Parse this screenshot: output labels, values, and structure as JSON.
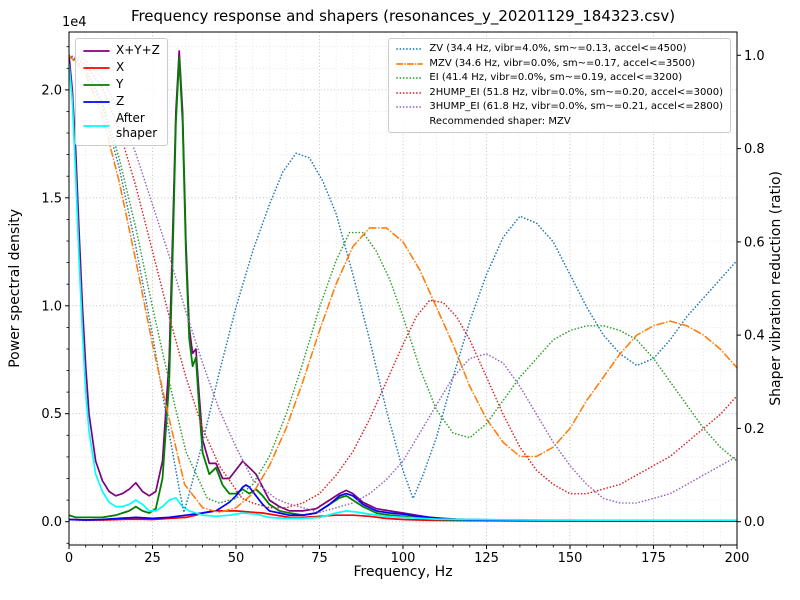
{
  "chart_data": {
    "type": "line",
    "title": "Frequency response and shapers (resonances_y_20201129_184323.csv)",
    "xlabel": "Frequency, Hz",
    "ylabel_left": "Power spectral density",
    "ylabel_right": "Shaper vibration reduction (ratio)",
    "x_axis": {
      "min": 0,
      "max": 200,
      "ticks": [
        0,
        25,
        50,
        75,
        100,
        125,
        150,
        175,
        200
      ],
      "tick_labels": [
        "0",
        "25",
        "50",
        "75",
        "100",
        "125",
        "150",
        "175",
        "200"
      ],
      "minor_step": 5
    },
    "y_left": {
      "min": -0.108,
      "max": 2.268,
      "ticks": [
        0,
        0.5,
        1,
        1.5,
        2
      ],
      "tick_labels": [
        "0.0",
        "0.5",
        "1.0",
        "1.5",
        "2.0"
      ],
      "minor_step": 0.1,
      "offset_text": "1e4",
      "units": "1e4"
    },
    "y_right": {
      "min": -0.05,
      "max": 1.05,
      "ticks": [
        0,
        0.2,
        0.4,
        0.6,
        0.8,
        1
      ],
      "tick_labels": [
        "0.0",
        "0.2",
        "0.4",
        "0.6",
        "0.8",
        "1.0"
      ]
    },
    "grid": {
      "major_color": "#b5b5b5",
      "minor_color": "#e2e2e2",
      "style": "dotted"
    },
    "legend_psd": {
      "items": [
        {
          "series": "X+Y+Z",
          "label": "X+Y+Z"
        },
        {
          "series": "X",
          "label": "X"
        },
        {
          "series": "Y",
          "label": "Y"
        },
        {
          "series": "Z",
          "label": "Z"
        },
        {
          "series": "After shaper",
          "label": "After\nshaper"
        }
      ]
    },
    "legend_shapers": {
      "items": [
        {
          "series": "ZV",
          "label": "ZV (34.4 Hz, vibr=4.0%, sm~=0.13, accel<=4500)"
        },
        {
          "series": "MZV",
          "label": "MZV (34.6 Hz, vibr=0.0%, sm~=0.17, accel<=3500)"
        },
        {
          "series": "EI",
          "label": "EI (41.4 Hz, vibr=0.0%, sm~=0.19, accel<=3200)"
        },
        {
          "series": "2HUMP_EI",
          "label": "2HUMP_EI (51.8 Hz, vibr=0.0%, sm~=0.20, accel<=3000)"
        },
        {
          "series": "3HUMP_EI",
          "label": "3HUMP_EI (61.8 Hz, vibr=0.0%, sm~=0.21, accel<=2800)"
        }
      ],
      "note": "Recommended shaper: MZV"
    },
    "series": [
      {
        "name": "X+Y+Z",
        "axis": "left",
        "color": "#800080",
        "style": "solid",
        "width": 1.7,
        "x": [
          0,
          1,
          2,
          3,
          4,
          5,
          6,
          8,
          10,
          12,
          14,
          16,
          18,
          20,
          22,
          24,
          26,
          28,
          30,
          31,
          32,
          33,
          34,
          35,
          36,
          37,
          38,
          39,
          40,
          42,
          44,
          46,
          48,
          50,
          52,
          54,
          56,
          58,
          60,
          63,
          66,
          70,
          74,
          78,
          81,
          83,
          85,
          88,
          92,
          96,
          100,
          104,
          108,
          112,
          116,
          120,
          130,
          140,
          160,
          180,
          200
        ],
        "y": [
          2.16,
          2.0,
          1.72,
          1.35,
          1.0,
          0.72,
          0.5,
          0.28,
          0.19,
          0.14,
          0.12,
          0.13,
          0.15,
          0.18,
          0.14,
          0.12,
          0.14,
          0.28,
          0.75,
          1.3,
          1.9,
          2.18,
          1.9,
          1.3,
          0.9,
          0.78,
          0.8,
          0.58,
          0.38,
          0.27,
          0.27,
          0.2,
          0.2,
          0.24,
          0.28,
          0.25,
          0.22,
          0.16,
          0.1,
          0.07,
          0.05,
          0.05,
          0.06,
          0.1,
          0.13,
          0.145,
          0.13,
          0.09,
          0.06,
          0.05,
          0.04,
          0.03,
          0.02,
          0.015,
          0.012,
          0.01,
          0.008,
          0.006,
          0.005,
          0.005,
          0.005
        ]
      },
      {
        "name": "X",
        "axis": "left",
        "color": "#ff0000",
        "style": "solid",
        "width": 1.7,
        "x": [
          0,
          5,
          10,
          15,
          20,
          25,
          30,
          35,
          38,
          40,
          43,
          46,
          50,
          54,
          58,
          62,
          66,
          70,
          75,
          80,
          85,
          90,
          95,
          100,
          105,
          110,
          120,
          140,
          160,
          180,
          200
        ],
        "y": [
          0.01,
          0.008,
          0.008,
          0.01,
          0.012,
          0.01,
          0.015,
          0.02,
          0.03,
          0.04,
          0.05,
          0.05,
          0.05,
          0.045,
          0.04,
          0.03,
          0.02,
          0.02,
          0.025,
          0.03,
          0.03,
          0.025,
          0.015,
          0.01,
          0.008,
          0.006,
          0.005,
          0.004,
          0.003,
          0.003,
          0.003
        ]
      },
      {
        "name": "Y",
        "axis": "left",
        "color": "#008000",
        "style": "solid",
        "width": 1.8,
        "x": [
          0,
          2,
          4,
          6,
          8,
          10,
          14,
          18,
          20,
          22,
          24,
          26,
          28,
          30,
          31,
          32,
          33,
          34,
          35,
          36,
          37,
          38,
          39,
          40,
          42,
          44,
          46,
          48,
          50,
          52,
          54,
          56,
          58,
          60,
          63,
          66,
          70,
          74,
          78,
          81,
          83,
          85,
          88,
          92,
          96,
          100,
          105,
          110,
          120,
          140,
          160,
          180,
          200
        ],
        "y": [
          0.03,
          0.02,
          0.02,
          0.02,
          0.02,
          0.02,
          0.03,
          0.05,
          0.07,
          0.05,
          0.04,
          0.06,
          0.2,
          0.65,
          1.2,
          1.85,
          2.15,
          1.85,
          1.25,
          0.85,
          0.72,
          0.76,
          0.52,
          0.32,
          0.22,
          0.25,
          0.17,
          0.13,
          0.13,
          0.15,
          0.13,
          0.15,
          0.12,
          0.08,
          0.05,
          0.04,
          0.03,
          0.04,
          0.08,
          0.11,
          0.12,
          0.1,
          0.07,
          0.04,
          0.03,
          0.025,
          0.015,
          0.01,
          0.006,
          0.004,
          0.003,
          0.003,
          0.003
        ]
      },
      {
        "name": "Z",
        "axis": "left",
        "color": "#0000ff",
        "style": "solid",
        "width": 1.7,
        "x": [
          0,
          5,
          10,
          15,
          20,
          25,
          30,
          35,
          40,
          44,
          48,
          50,
          52,
          53,
          54,
          56,
          58,
          60,
          63,
          66,
          70,
          74,
          78,
          81,
          83,
          85,
          88,
          92,
          96,
          100,
          104,
          108,
          112,
          116,
          120,
          140,
          160,
          180,
          200
        ],
        "y": [
          0.01,
          0.008,
          0.01,
          0.015,
          0.02,
          0.015,
          0.02,
          0.03,
          0.04,
          0.05,
          0.09,
          0.12,
          0.16,
          0.17,
          0.16,
          0.12,
          0.08,
          0.05,
          0.04,
          0.03,
          0.03,
          0.04,
          0.08,
          0.12,
          0.13,
          0.12,
          0.08,
          0.05,
          0.04,
          0.035,
          0.025,
          0.02,
          0.012,
          0.01,
          0.008,
          0.005,
          0.004,
          0.004,
          0.004
        ]
      },
      {
        "name": "After shaper",
        "axis": "left",
        "color": "#00ffff",
        "style": "solid",
        "width": 1.7,
        "x": [
          0,
          1,
          2,
          3,
          4,
          5,
          6,
          8,
          10,
          12,
          14,
          16,
          18,
          20,
          22,
          24,
          26,
          28,
          30,
          32,
          34,
          36,
          38,
          40,
          44,
          48,
          52,
          56,
          60,
          65,
          70,
          75,
          80,
          83,
          86,
          90,
          95,
          100,
          110,
          120,
          140,
          160,
          180,
          200
        ],
        "y": [
          2.12,
          1.95,
          1.6,
          1.22,
          0.88,
          0.6,
          0.42,
          0.22,
          0.14,
          0.09,
          0.07,
          0.07,
          0.08,
          0.1,
          0.08,
          0.05,
          0.05,
          0.07,
          0.1,
          0.11,
          0.07,
          0.05,
          0.04,
          0.03,
          0.025,
          0.03,
          0.04,
          0.035,
          0.02,
          0.015,
          0.015,
          0.02,
          0.04,
          0.05,
          0.045,
          0.035,
          0.025,
          0.02,
          0.012,
          0.01,
          0.008,
          0.007,
          0.007,
          0.007
        ]
      },
      {
        "name": "ZV",
        "axis": "right",
        "color": "#1f77b4",
        "style": "dotted",
        "width": 1.6,
        "x": [
          0,
          5,
          10,
          15,
          20,
          25,
          30,
          33,
          34.4,
          36,
          40,
          45,
          50,
          55,
          60,
          64,
          68,
          72,
          76,
          80,
          85,
          90,
          95,
          100,
          103,
          106,
          110,
          115,
          120,
          125,
          130,
          135,
          140,
          145,
          150,
          155,
          160,
          165,
          170,
          175,
          180,
          185,
          190,
          195,
          200
        ],
        "y": [
          1.0,
          0.97,
          0.89,
          0.76,
          0.59,
          0.4,
          0.19,
          0.07,
          0.02,
          0.06,
          0.17,
          0.32,
          0.46,
          0.58,
          0.68,
          0.75,
          0.79,
          0.78,
          0.73,
          0.66,
          0.53,
          0.39,
          0.24,
          0.11,
          0.05,
          0.1,
          0.18,
          0.31,
          0.43,
          0.53,
          0.61,
          0.655,
          0.64,
          0.6,
          0.53,
          0.46,
          0.4,
          0.36,
          0.335,
          0.35,
          0.39,
          0.44,
          0.48,
          0.52,
          0.56
        ]
      },
      {
        "name": "MZV",
        "axis": "right",
        "color": "#ff7f0e",
        "style": "dashdot",
        "width": 1.6,
        "x": [
          0,
          5,
          10,
          15,
          20,
          25,
          30,
          34.6,
          40,
          45,
          50,
          55,
          60,
          65,
          70,
          75,
          80,
          85,
          90,
          95,
          100,
          105,
          110,
          115,
          120,
          125,
          130,
          135,
          140,
          145,
          150,
          155,
          160,
          165,
          170,
          175,
          180,
          185,
          190,
          195,
          200
        ],
        "y": [
          1.0,
          0.96,
          0.87,
          0.73,
          0.56,
          0.38,
          0.22,
          0.08,
          0.03,
          0.02,
          0.03,
          0.06,
          0.12,
          0.2,
          0.3,
          0.41,
          0.51,
          0.59,
          0.63,
          0.63,
          0.6,
          0.54,
          0.46,
          0.38,
          0.29,
          0.22,
          0.17,
          0.14,
          0.14,
          0.16,
          0.2,
          0.26,
          0.31,
          0.36,
          0.4,
          0.42,
          0.43,
          0.42,
          0.4,
          0.37,
          0.33
        ]
      },
      {
        "name": "EI",
        "axis": "right",
        "color": "#2ca02c",
        "style": "dotted",
        "width": 1.6,
        "x": [
          0,
          5,
          10,
          15,
          20,
          25,
          30,
          35,
          41.4,
          45,
          50,
          55,
          60,
          65,
          70,
          75,
          80,
          84,
          88,
          92,
          96,
          100,
          105,
          110,
          115,
          120,
          125,
          130,
          135,
          140,
          145,
          150,
          155,
          160,
          165,
          170,
          175,
          180,
          185,
          190,
          195,
          200
        ],
        "y": [
          1.0,
          0.97,
          0.9,
          0.78,
          0.63,
          0.46,
          0.3,
          0.15,
          0.05,
          0.04,
          0.05,
          0.08,
          0.14,
          0.23,
          0.34,
          0.46,
          0.56,
          0.62,
          0.62,
          0.58,
          0.52,
          0.44,
          0.33,
          0.24,
          0.19,
          0.18,
          0.21,
          0.26,
          0.31,
          0.35,
          0.39,
          0.41,
          0.42,
          0.42,
          0.41,
          0.39,
          0.35,
          0.3,
          0.25,
          0.2,
          0.16,
          0.13
        ]
      },
      {
        "name": "2HUMP_EI",
        "axis": "right",
        "color": "#d62728",
        "style": "dotted",
        "width": 1.6,
        "x": [
          0,
          5,
          10,
          15,
          20,
          25,
          30,
          35,
          40,
          45,
          51.8,
          55,
          60,
          65,
          70,
          75,
          80,
          85,
          90,
          95,
          100,
          104,
          108,
          112,
          116,
          120,
          125,
          130,
          135,
          140,
          145,
          150,
          155,
          160,
          165,
          170,
          175,
          180,
          185,
          190,
          195,
          200
        ],
        "y": [
          1.0,
          0.98,
          0.93,
          0.84,
          0.72,
          0.58,
          0.44,
          0.31,
          0.2,
          0.12,
          0.05,
          0.04,
          0.03,
          0.03,
          0.04,
          0.06,
          0.1,
          0.15,
          0.22,
          0.3,
          0.38,
          0.44,
          0.475,
          0.47,
          0.44,
          0.39,
          0.31,
          0.23,
          0.16,
          0.11,
          0.08,
          0.06,
          0.06,
          0.07,
          0.08,
          0.1,
          0.12,
          0.14,
          0.17,
          0.2,
          0.23,
          0.27
        ]
      },
      {
        "name": "3HUMP_EI",
        "axis": "right",
        "color": "#9467bd",
        "style": "dotted",
        "width": 1.6,
        "x": [
          0,
          5,
          10,
          15,
          20,
          25,
          30,
          35,
          40,
          45,
          50,
          55,
          61.8,
          65,
          70,
          75,
          80,
          85,
          90,
          95,
          100,
          105,
          110,
          115,
          120,
          125,
          130,
          135,
          140,
          145,
          150,
          155,
          160,
          165,
          170,
          175,
          180,
          185,
          190,
          195,
          200
        ],
        "y": [
          1.0,
          0.99,
          0.95,
          0.88,
          0.79,
          0.68,
          0.57,
          0.45,
          0.34,
          0.24,
          0.16,
          0.09,
          0.05,
          0.04,
          0.03,
          0.02,
          0.03,
          0.04,
          0.06,
          0.09,
          0.13,
          0.19,
          0.25,
          0.31,
          0.35,
          0.36,
          0.34,
          0.29,
          0.23,
          0.17,
          0.12,
          0.08,
          0.05,
          0.04,
          0.04,
          0.05,
          0.06,
          0.08,
          0.1,
          0.12,
          0.14
        ]
      }
    ]
  }
}
